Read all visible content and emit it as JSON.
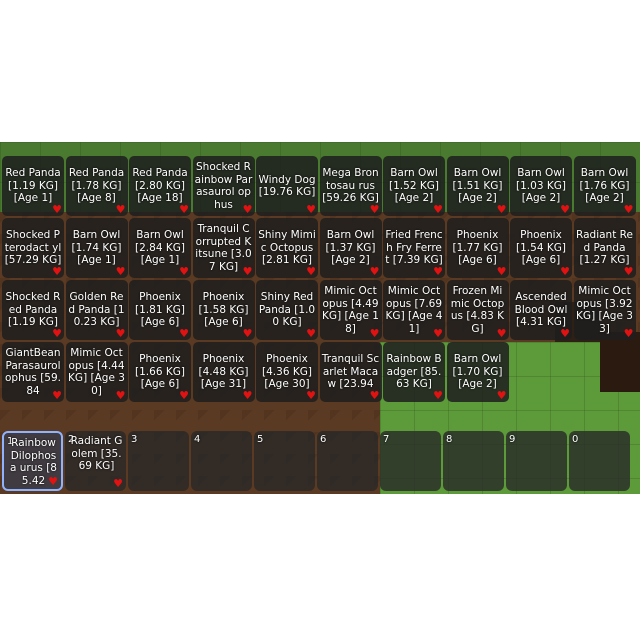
{
  "inventory": {
    "items": [
      {
        "label": "Red Panda [1.19 KG] [Age 1]",
        "favorite_icon": "heart-icon"
      },
      {
        "label": "Red Panda [1.78 KG] [Age 8]",
        "favorite_icon": "heart-icon"
      },
      {
        "label": "Red Panda [2.80 KG] [Age 18]",
        "favorite_icon": "heart-icon"
      },
      {
        "label": "Shocked Rainbow Parasaurol ophus",
        "favorite_icon": "heart-icon"
      },
      {
        "label": "Windy Dog [19.76 KG]",
        "favorite_icon": "heart-icon"
      },
      {
        "label": "Mega Brontosau rus [59.26 KG]",
        "favorite_icon": "heart-icon"
      },
      {
        "label": "Barn Owl [1.52 KG] [Age 2]",
        "favorite_icon": "heart-icon"
      },
      {
        "label": "Barn Owl [1.51 KG] [Age 2]",
        "favorite_icon": "heart-icon"
      },
      {
        "label": "Barn Owl [1.03 KG] [Age 2]",
        "favorite_icon": "heart-icon"
      },
      {
        "label": "Barn Owl [1.76 KG] [Age 2]",
        "favorite_icon": "heart-icon"
      },
      {
        "label": "Shocked Pterodact yl [57.29 KG]",
        "favorite_icon": "heart-icon"
      },
      {
        "label": "Barn Owl [1.74 KG] [Age 1]",
        "favorite_icon": "heart-icon"
      },
      {
        "label": "Barn Owl [2.84 KG] [Age 1]",
        "favorite_icon": "heart-icon"
      },
      {
        "label": "Tranquil Corrupted Kitsune [3.07 KG]",
        "favorite_icon": "heart-icon"
      },
      {
        "label": "Shiny Mimic Octopus [2.81 KG]",
        "favorite_icon": "heart-icon"
      },
      {
        "label": "Barn Owl [1.37 KG] [Age 2]",
        "favorite_icon": "heart-icon"
      },
      {
        "label": "Fried French Fry Ferret [7.39 KG]",
        "favorite_icon": "heart-icon"
      },
      {
        "label": "Phoenix [1.77 KG] [Age 6]",
        "favorite_icon": "heart-icon"
      },
      {
        "label": "Phoenix [1.54 KG] [Age 6]",
        "favorite_icon": "heart-icon"
      },
      {
        "label": "Radiant Red Panda [1.27 KG]",
        "favorite_icon": "heart-icon"
      },
      {
        "label": "Shocked Red Panda [1.19 KG]",
        "favorite_icon": "heart-icon"
      },
      {
        "label": "Golden Red Panda [10.23 KG]",
        "favorite_icon": "heart-icon"
      },
      {
        "label": "Phoenix [1.81 KG] [Age 6]",
        "favorite_icon": "heart-icon"
      },
      {
        "label": "Phoenix [1.58 KG] [Age 6]",
        "favorite_icon": "heart-icon"
      },
      {
        "label": "Shiny Red Panda [1.00 KG]",
        "favorite_icon": "heart-icon"
      },
      {
        "label": "Mimic Octopus [4.49 KG] [Age 18]",
        "favorite_icon": "heart-icon"
      },
      {
        "label": "Mimic Octopus [7.69 KG] [Age 41]",
        "favorite_icon": "heart-icon"
      },
      {
        "label": "Frozen Mimic Octopus [4.83 KG]",
        "favorite_icon": "heart-icon"
      },
      {
        "label": "Ascended Blood Owl [4.31 KG]",
        "favorite_icon": "heart-icon"
      },
      {
        "label": "Mimic Octopus [3.92 KG] [Age 33]",
        "favorite_icon": "heart-icon"
      },
      {
        "label": "GiantBean Parasaurol ophus [59.84",
        "favorite_icon": "heart-icon"
      },
      {
        "label": "Mimic Octopus [4.44 KG] [Age 30]",
        "favorite_icon": "heart-icon"
      },
      {
        "label": "Phoenix [1.66 KG] [Age 6]",
        "favorite_icon": "heart-icon"
      },
      {
        "label": "Phoenix [4.48 KG] [Age 31]",
        "favorite_icon": "heart-icon"
      },
      {
        "label": "Phoenix [4.36 KG] [Age 30]",
        "favorite_icon": "heart-icon"
      },
      {
        "label": "Tranquil Scarlet Macaw [23.94",
        "favorite_icon": "heart-icon"
      },
      {
        "label": "Rainbow Badger [85.63 KG]",
        "favorite_icon": "heart-icon"
      },
      {
        "label": "Barn Owl [1.70 KG] [Age 2]",
        "favorite_icon": "heart-icon"
      }
    ]
  },
  "hotbar": {
    "slots": [
      {
        "number": "1",
        "label": "Rainbow Dilophosa urus [85.42",
        "favorite_icon": "heart-icon",
        "selected": true
      },
      {
        "number": "2",
        "label": "Radiant Golem [35.69 KG]",
        "favorite_icon": "heart-icon",
        "selected": false
      },
      {
        "number": "3",
        "label": "",
        "selected": false
      },
      {
        "number": "4",
        "label": "",
        "selected": false
      },
      {
        "number": "5",
        "label": "",
        "selected": false
      },
      {
        "number": "6",
        "label": "",
        "selected": false
      },
      {
        "number": "7",
        "label": "",
        "selected": false
      },
      {
        "number": "8",
        "label": "",
        "selected": false
      },
      {
        "number": "9",
        "label": "",
        "selected": false
      },
      {
        "number": "0",
        "label": "",
        "selected": false
      }
    ]
  },
  "colors": {
    "favorite_heart": "#e01212",
    "selected_slot_border": "#8fb3ff"
  }
}
